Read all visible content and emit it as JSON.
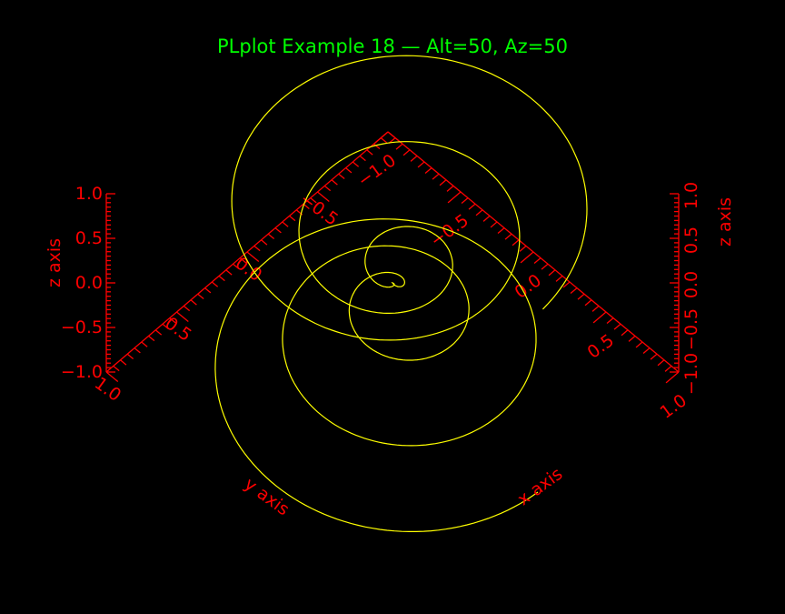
{
  "chart_data": {
    "type": "line3d",
    "title": "PLplot Example 18 — Alt=50, Az=50",
    "altitude": 50,
    "azimuth": 50,
    "xlabel": "x axis",
    "ylabel": "y axis",
    "zlabel": "z axis",
    "xlim": [
      -1.0,
      1.0
    ],
    "ylim": [
      -1.0,
      1.0
    ],
    "zlim": [
      -1.0,
      1.0
    ],
    "x_ticks": [
      "−1.0",
      "−0.5",
      "0.0",
      "0.5",
      "1.0"
    ],
    "y_ticks": [
      "−0.5",
      "0.0",
      "0.5",
      "1.0"
    ],
    "z_ticks_left": [
      "−1.0",
      "−0.5",
      "0.0",
      "0.5",
      "1.0"
    ],
    "z_ticks_right": [
      "−1.0",
      "−0.5",
      "0.0",
      "0.5",
      "1.0"
    ],
    "series": [
      {
        "curve": "spiral",
        "parametric": {
          "x": "r(t)·cos(2π·6t/N)",
          "y": "r(t)·sin(2π·6t/N)",
          "z": "−1 + 2t/N",
          "r": "|z|"
        },
        "points": 1000
      }
    ]
  },
  "colors": {
    "background": "#000000",
    "title": "#00ff00",
    "axes": "#ff0000",
    "curve": "#ffff00"
  }
}
